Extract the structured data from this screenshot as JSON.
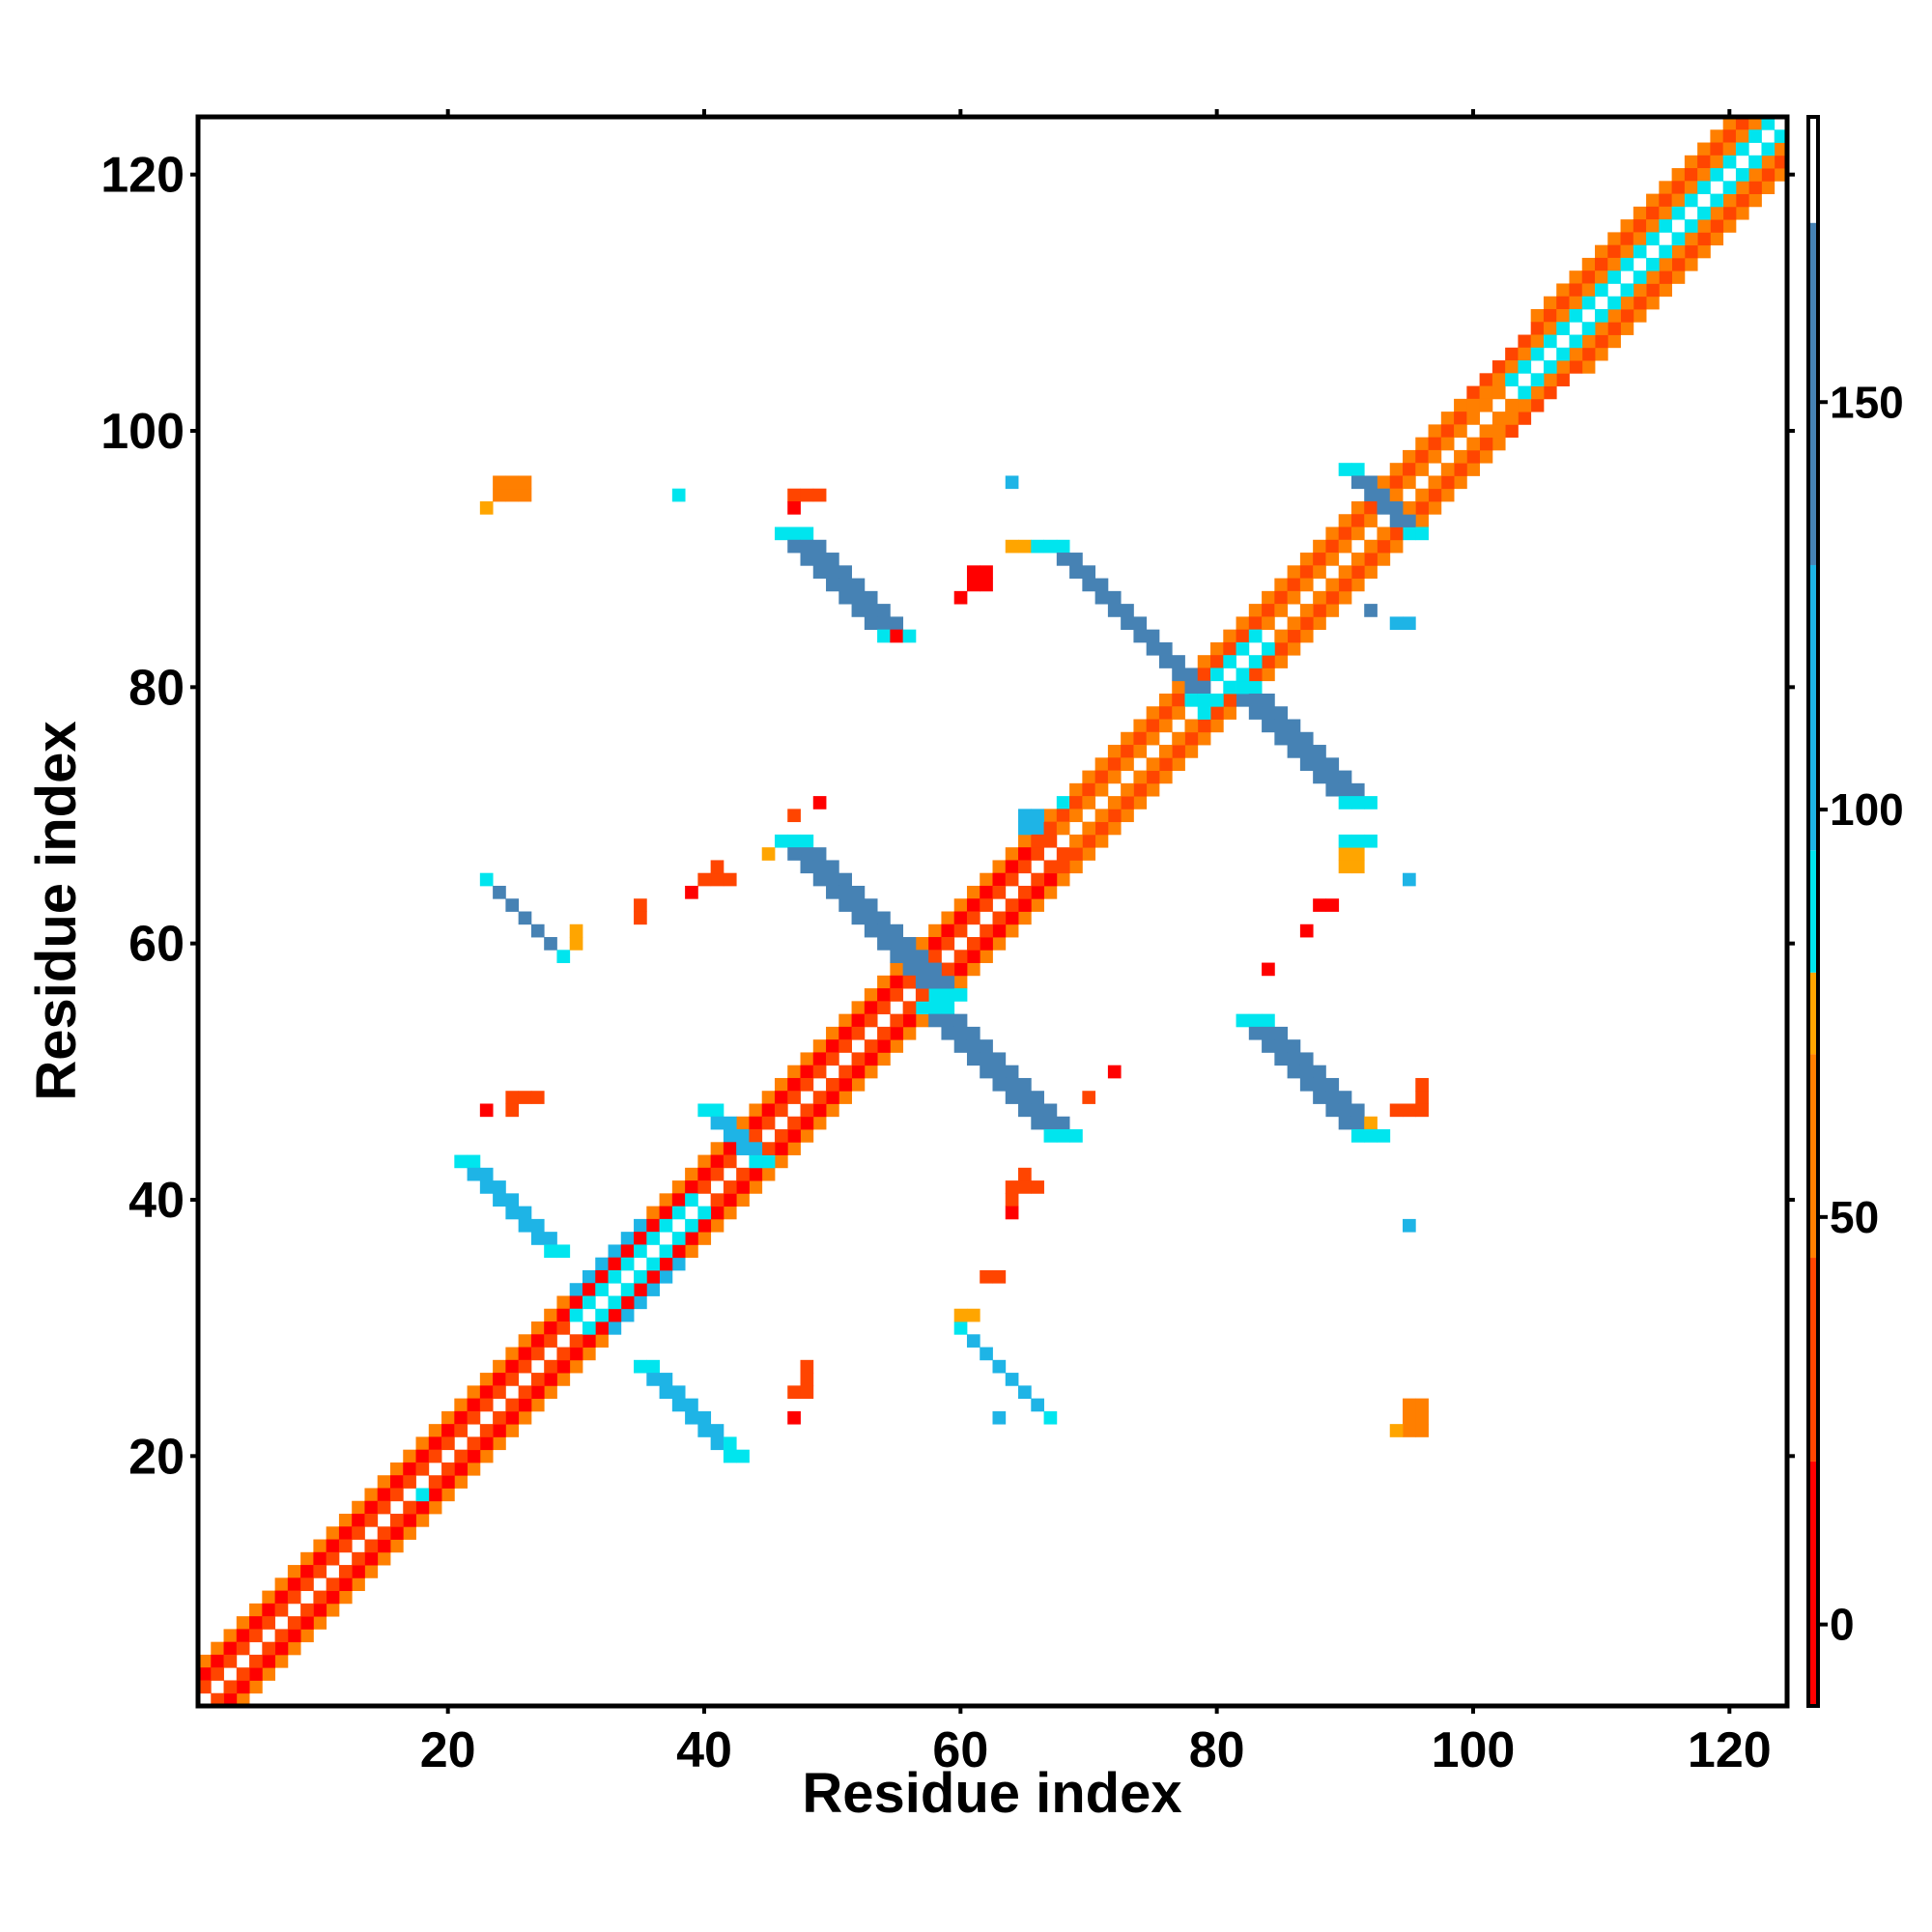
{
  "chart_data": {
    "type": "heatmap",
    "title": "",
    "xlabel": "Residue index",
    "ylabel": "Residue index",
    "xlim": [
      1,
      124
    ],
    "ylim": [
      1,
      124
    ],
    "x_ticks": [
      20,
      40,
      60,
      80,
      100,
      120
    ],
    "y_ticks": [
      20,
      40,
      60,
      80,
      100,
      120
    ],
    "x_tick_labels": [
      "20",
      "40",
      "60",
      "80",
      "100",
      "120"
    ],
    "y_tick_labels": [
      "20",
      "40",
      "60",
      "80",
      "100",
      "120"
    ],
    "grid": false,
    "legend": "colorbar at right",
    "colorbar": {
      "range": [
        -10,
        185
      ],
      "ticks": [
        0,
        50,
        100,
        150
      ],
      "tick_labels": [
        "0",
        "50",
        "100",
        "150"
      ],
      "bands": [
        {
          "from": -10,
          "to": 20,
          "color": "#ff0000"
        },
        {
          "from": 20,
          "to": 45,
          "color": "#ff4500"
        },
        {
          "from": 45,
          "to": 70,
          "color": "#ff7f00"
        },
        {
          "from": 70,
          "to": 80,
          "color": "#ffa500"
        },
        {
          "from": 80,
          "to": 95,
          "color": "#00e5ee"
        },
        {
          "from": 95,
          "to": 130,
          "color": "#1eb4e6"
        },
        {
          "from": 130,
          "to": 172,
          "color": "#4682b4"
        },
        {
          "from": 172,
          "to": 185,
          "color": "#ffffff"
        }
      ]
    },
    "colors": {
      "red": "#ff0000",
      "orangered": "#ff4500",
      "orange": "#ff7f00",
      "amber": "#ffa500",
      "cyan": "#00e5ee",
      "skyblue": "#1eb4e6",
      "steelblue": "#4682b4"
    },
    "diagonal": {
      "from": 1,
      "to": 124,
      "offset_plus1_segments": [
        {
          "from": 1,
          "to": 30,
          "color": "orangered"
        },
        {
          "from": 30,
          "to": 40,
          "color": "cyan"
        },
        {
          "from": 40,
          "to": 68,
          "color": "orangered"
        },
        {
          "from": 68,
          "to": 78,
          "color": "orange"
        },
        {
          "from": 78,
          "to": 84,
          "color": "cyan"
        },
        {
          "from": 84,
          "to": 103,
          "color": "orange"
        },
        {
          "from": 103,
          "to": 123,
          "color": "cyan"
        }
      ],
      "offset_plus2_segments": [
        {
          "from": 1,
          "to": 60,
          "color": "red"
        },
        {
          "from": 60,
          "to": 66,
          "color": "red"
        },
        {
          "from": 66,
          "to": 100,
          "color": "orangered"
        },
        {
          "from": 100,
          "to": 122,
          "color": "orange"
        }
      ],
      "offset_plus3_segments": [
        {
          "from": 1,
          "to": 30,
          "color": "orange"
        },
        {
          "from": 30,
          "to": 36,
          "color": "skyblue"
        },
        {
          "from": 36,
          "to": 100,
          "color": "orange"
        },
        {
          "from": 100,
          "to": 121,
          "color": "orangered"
        }
      ],
      "offset_plus4_segments": [
        {
          "from": 105,
          "to": 120,
          "color": "orange"
        }
      ]
    },
    "strands": [
      {
        "i_start": 35,
        "j_start": 27,
        "length": 8,
        "di": 1,
        "dj": -1,
        "width": 2,
        "color": "skyblue"
      },
      {
        "i_start": 60,
        "j_start": 30,
        "length": 8,
        "di": 1,
        "dj": -1,
        "width": 1,
        "color": "skyblue"
      },
      {
        "i_start": 21,
        "j_start": 43,
        "length": 8,
        "di": 1,
        "dj": -1,
        "width": 2,
        "color": "skyblue"
      },
      {
        "i_start": 40,
        "j_start": 47,
        "length": 5,
        "di": 1,
        "dj": -1,
        "width": 2,
        "color": "skyblue"
      },
      {
        "i_start": 23,
        "j_start": 65,
        "length": 7,
        "di": 1,
        "dj": -1,
        "width": 1,
        "color": "steelblue"
      },
      {
        "i_start": 46,
        "j_start": 68,
        "length": 13,
        "di": 1,
        "dj": -1,
        "width": 3,
        "color": "steelblue"
      },
      {
        "i_start": 57,
        "j_start": 55,
        "length": 11,
        "di": 1,
        "dj": -1,
        "width": 3,
        "color": "steelblue"
      },
      {
        "i_start": 46,
        "j_start": 92,
        "length": 9,
        "di": 1,
        "dj": -1,
        "width": 3,
        "color": "steelblue"
      },
      {
        "i_start": 67,
        "j_start": 91,
        "length": 13,
        "di": 1,
        "dj": -1,
        "width": 2,
        "color": "steelblue"
      },
      {
        "i_start": 81,
        "j_start": 80,
        "length": 10,
        "di": 1,
        "dj": -1,
        "width": 3,
        "color": "steelblue"
      },
      {
        "i_start": 82,
        "j_start": 54,
        "length": 10,
        "di": 1,
        "dj": -1,
        "width": 3,
        "color": "steelblue"
      },
      {
        "i_start": 90,
        "j_start": 97,
        "length": 6,
        "di": 1,
        "dj": -1,
        "width": 2,
        "color": "steelblue"
      }
    ],
    "spots": [
      {
        "x": 24,
        "y": 95,
        "w": 3,
        "h": 2,
        "color": "orange"
      },
      {
        "x": 23,
        "y": 94,
        "w": 1,
        "h": 1,
        "color": "amber"
      },
      {
        "x": 47,
        "y": 95,
        "w": 3,
        "h": 1,
        "color": "orangered"
      },
      {
        "x": 47,
        "y": 94,
        "w": 1,
        "h": 1,
        "color": "red"
      },
      {
        "x": 38,
        "y": 95,
        "w": 1,
        "h": 1,
        "color": "cyan"
      },
      {
        "x": 64,
        "y": 96,
        "w": 1,
        "h": 1,
        "color": "skyblue"
      },
      {
        "x": 61,
        "y": 88,
        "w": 2,
        "h": 2,
        "color": "red"
      },
      {
        "x": 60,
        "y": 87,
        "w": 1,
        "h": 1,
        "color": "red"
      },
      {
        "x": 64,
        "y": 91,
        "w": 3,
        "h": 1,
        "color": "amber"
      },
      {
        "x": 66,
        "y": 91,
        "w": 2,
        "h": 1,
        "color": "cyan"
      },
      {
        "x": 55,
        "y": 84,
        "w": 1,
        "h": 1,
        "color": "red"
      },
      {
        "x": 49,
        "y": 71,
        "w": 1,
        "h": 1,
        "color": "red"
      },
      {
        "x": 47,
        "y": 70,
        "w": 1,
        "h": 1,
        "color": "orangered"
      },
      {
        "x": 45,
        "y": 67,
        "w": 1,
        "h": 1,
        "color": "amber"
      },
      {
        "x": 41,
        "y": 65,
        "w": 1,
        "h": 2,
        "color": "orangered"
      },
      {
        "x": 40,
        "y": 65,
        "w": 3,
        "h": 1,
        "color": "orangered"
      },
      {
        "x": 39,
        "y": 64,
        "w": 1,
        "h": 1,
        "color": "red"
      },
      {
        "x": 35,
        "y": 62,
        "w": 1,
        "h": 2,
        "color": "orangered"
      },
      {
        "x": 30,
        "y": 60,
        "w": 1,
        "h": 2,
        "color": "amber"
      },
      {
        "x": 65,
        "y": 69,
        "w": 2,
        "h": 2,
        "color": "skyblue"
      },
      {
        "x": 90,
        "y": 66,
        "w": 2,
        "h": 3,
        "color": "amber"
      },
      {
        "x": 90,
        "y": 68,
        "w": 3,
        "h": 1,
        "color": "cyan"
      },
      {
        "x": 95,
        "y": 65,
        "w": 1,
        "h": 1,
        "color": "skyblue"
      },
      {
        "x": 88,
        "y": 63,
        "w": 2,
        "h": 1,
        "color": "red"
      },
      {
        "x": 87,
        "y": 61,
        "w": 1,
        "h": 1,
        "color": "red"
      },
      {
        "x": 84,
        "y": 58,
        "w": 1,
        "h": 1,
        "color": "red"
      },
      {
        "x": 72,
        "y": 50,
        "w": 1,
        "h": 1,
        "color": "red"
      },
      {
        "x": 70,
        "y": 48,
        "w": 1,
        "h": 1,
        "color": "orangered"
      },
      {
        "x": 96,
        "y": 48,
        "w": 1,
        "h": 2,
        "color": "orangered"
      },
      {
        "x": 94,
        "y": 47,
        "w": 3,
        "h": 1,
        "color": "orangered"
      },
      {
        "x": 92,
        "y": 46,
        "w": 1,
        "h": 1,
        "color": "amber"
      },
      {
        "x": 25,
        "y": 48,
        "w": 3,
        "h": 1,
        "color": "orangered"
      },
      {
        "x": 25,
        "y": 47,
        "w": 1,
        "h": 1,
        "color": "orangered"
      },
      {
        "x": 23,
        "y": 47,
        "w": 1,
        "h": 1,
        "color": "red"
      },
      {
        "x": 65,
        "y": 42,
        "w": 1,
        "h": 1,
        "color": "orangered"
      },
      {
        "x": 64,
        "y": 41,
        "w": 3,
        "h": 1,
        "color": "orangered"
      },
      {
        "x": 64,
        "y": 40,
        "w": 1,
        "h": 1,
        "color": "orangered"
      },
      {
        "x": 64,
        "y": 39,
        "w": 1,
        "h": 1,
        "color": "red"
      },
      {
        "x": 95,
        "y": 38,
        "w": 1,
        "h": 1,
        "color": "skyblue"
      },
      {
        "x": 62,
        "y": 34,
        "w": 2,
        "h": 1,
        "color": "orangered"
      },
      {
        "x": 60,
        "y": 31,
        "w": 2,
        "h": 1,
        "color": "amber"
      },
      {
        "x": 60,
        "y": 30,
        "w": 1,
        "h": 1,
        "color": "cyan"
      },
      {
        "x": 48,
        "y": 26,
        "w": 1,
        "h": 2,
        "color": "orangered"
      },
      {
        "x": 47,
        "y": 25,
        "w": 2,
        "h": 1,
        "color": "orangered"
      },
      {
        "x": 47,
        "y": 23,
        "w": 1,
        "h": 1,
        "color": "red"
      },
      {
        "x": 95,
        "y": 22,
        "w": 2,
        "h": 3,
        "color": "orange"
      },
      {
        "x": 94,
        "y": 22,
        "w": 1,
        "h": 1,
        "color": "amber"
      },
      {
        "x": 42,
        "y": 21,
        "w": 1,
        "h": 1,
        "color": "cyan"
      },
      {
        "x": 18,
        "y": 17,
        "w": 1,
        "h": 1,
        "color": "cyan"
      },
      {
        "x": 63,
        "y": 23,
        "w": 1,
        "h": 1,
        "color": "skyblue"
      },
      {
        "x": 68,
        "y": 71,
        "w": 1,
        "h": 1,
        "color": "cyan"
      },
      {
        "x": 92,
        "y": 86,
        "w": 1,
        "h": 1,
        "color": "steelblue"
      },
      {
        "x": 94,
        "y": 85,
        "w": 2,
        "h": 1,
        "color": "skyblue"
      }
    ]
  }
}
